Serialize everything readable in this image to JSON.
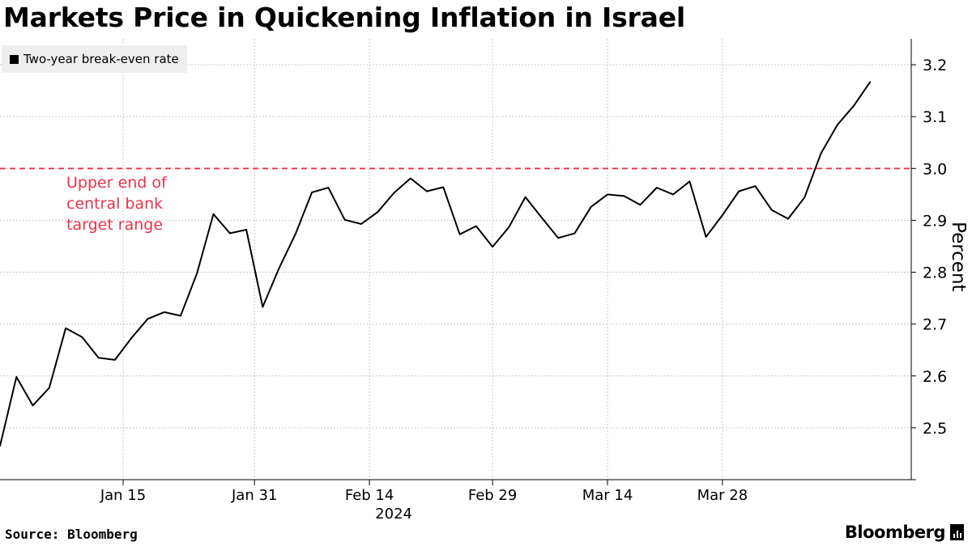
{
  "title": "Markets Price in Quickening Inflation in Israel",
  "source": "Source: Bloomberg",
  "brand": "Bloomberg",
  "colors": {
    "line": "#000000",
    "threshold": "#e8334b",
    "grid": "#c8c8c8",
    "legend_bg": "#eeeeee"
  },
  "chart_data": {
    "type": "line",
    "title": "Markets Price in Quickening Inflation in Israel",
    "xlabel": "2024",
    "ylabel": "Percent",
    "ylim": [
      2.4,
      3.25
    ],
    "y_ticks": [
      "2.5",
      "2.6",
      "2.7",
      "2.8",
      "2.9",
      "3.0",
      "3.1",
      "3.2"
    ],
    "x_ticks": [
      "Jan 15",
      "Jan 31",
      "Feb 14",
      "Feb 29",
      "Mar 14",
      "Mar 28"
    ],
    "x_tick_days": [
      15,
      31,
      45,
      60,
      74,
      88
    ],
    "x_range_days": [
      0,
      111
    ],
    "legend": [
      "Two-year break-even rate"
    ],
    "grid": true,
    "series": [
      {
        "name": "Two-year break-even rate",
        "x_days": [
          0,
          2,
          4,
          6,
          8,
          10,
          12,
          14,
          16,
          18,
          20,
          22,
          24,
          26,
          28,
          30,
          32,
          34,
          36,
          38,
          40,
          42,
          44,
          46,
          48,
          50,
          52,
          54,
          56,
          58,
          60,
          62,
          64,
          66,
          68,
          70,
          72,
          74,
          76,
          78,
          80,
          82,
          84,
          86,
          88,
          90,
          92,
          94,
          96,
          98,
          100,
          102,
          104,
          106
        ],
        "values": [
          2.465,
          2.598,
          2.543,
          2.577,
          2.692,
          2.675,
          2.635,
          2.631,
          2.673,
          2.71,
          2.723,
          2.716,
          2.798,
          2.912,
          2.875,
          2.882,
          2.733,
          2.808,
          2.874,
          2.954,
          2.963,
          2.901,
          2.893,
          2.916,
          2.953,
          2.981,
          2.956,
          2.964,
          2.873,
          2.889,
          2.849,
          2.887,
          2.945,
          2.905,
          2.866,
          2.875,
          2.926,
          2.95,
          2.947,
          2.93,
          2.963,
          2.95,
          2.975,
          2.868,
          2.91,
          2.956,
          2.966,
          2.92,
          2.903,
          2.944,
          3.029,
          3.084,
          3.121,
          3.167
        ]
      }
    ],
    "threshold": {
      "value": 3.0,
      "label_lines": [
        "Upper end of",
        "central bank",
        "target range"
      ]
    }
  }
}
